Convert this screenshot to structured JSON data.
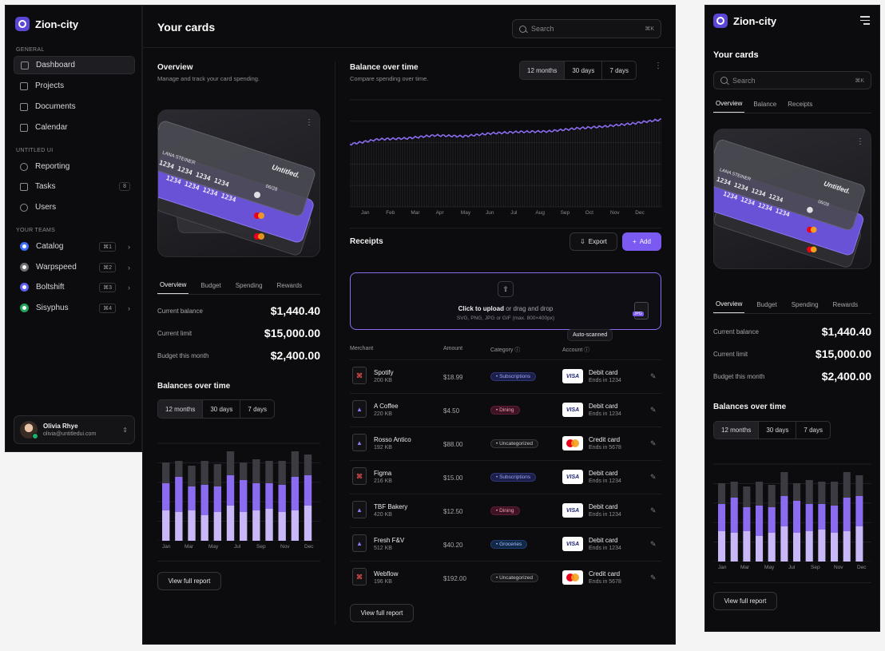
{
  "app": {
    "name": "Zion-city"
  },
  "sidebar": {
    "group_general": "GENERAL",
    "group_untitled": "UNTITLED UI",
    "group_teams": "YOUR TEAMS",
    "items": [
      {
        "label": "Dashboard"
      },
      {
        "label": "Projects"
      },
      {
        "label": "Documents"
      },
      {
        "label": "Calendar"
      },
      {
        "label": "Reporting"
      },
      {
        "label": "Tasks",
        "count": "8"
      },
      {
        "label": "Users"
      }
    ],
    "teams": [
      {
        "label": "Catalog",
        "shortcut": "⌘1",
        "color": "#3b6ff5"
      },
      {
        "label": "Warpspeed",
        "shortcut": "⌘2",
        "color": "#6d6d75"
      },
      {
        "label": "Boltshift",
        "shortcut": "⌘3",
        "color": "#5c5ff2"
      },
      {
        "label": "Sisyphus",
        "shortcut": "⌘4",
        "color": "#22a35a"
      }
    ],
    "user": {
      "name": "Olivia Rhye",
      "email": "olivia@untitledui.com"
    }
  },
  "header": {
    "title": "Your cards",
    "search_placeholder": "Search",
    "search_shortcut": "⌘K"
  },
  "overview": {
    "title": "Overview",
    "subtitle": "Manage and track your card spending.",
    "card_brand": "Untitled.",
    "card_holder": "LANA STEINER",
    "card_number": "1234  1234  1234  1234",
    "card_expiry": "06/28",
    "tabs": [
      "Overview",
      "Budget",
      "Spending",
      "Rewards"
    ],
    "stats": [
      {
        "label": "Current balance",
        "value": "$1,440.40"
      },
      {
        "label": "Current limit",
        "value": "$15,000.00"
      },
      {
        "label": "Budget this month",
        "value": "$2,400.00"
      }
    ]
  },
  "balances": {
    "title": "Balances over time",
    "ranges": [
      "12 months",
      "30 days",
      "7 days"
    ],
    "months": [
      "Jan",
      "Mar",
      "May",
      "Jul",
      "Sep",
      "Nov",
      "Dec"
    ],
    "report_button": "View full report"
  },
  "balance_over_time": {
    "title": "Balance over time",
    "subtitle": "Compare spending over time.",
    "ranges": [
      "12 months",
      "30 days",
      "7 days"
    ],
    "months": [
      "Jan",
      "Feb",
      "Mar",
      "Apr",
      "May",
      "Jun",
      "Jul",
      "Aug",
      "Sep",
      "Oct",
      "Nov",
      "Dec"
    ]
  },
  "receipts": {
    "title": "Receipts",
    "export_label": "Export",
    "add_label": "Add",
    "upload_cta": "Click to upload",
    "upload_rest": " or drag and drop",
    "upload_hint": "SVG, PNG, JPG or GIF (max. 800×400px)",
    "upload_file_tag": "JPG",
    "tooltip": "Auto-scanned",
    "columns": [
      "Merchant",
      "Amount",
      "Category",
      "Account"
    ],
    "rows": [
      {
        "merchant": "Spotify",
        "size": "200 KB",
        "amount": "$18.99",
        "category": "Subscriptions",
        "cat_style": "sub",
        "file": "pdf",
        "account": "Debit card",
        "ends": "Ends in 1234",
        "network": "visa"
      },
      {
        "merchant": "A Coffee",
        "size": "220 KB",
        "amount": "$4.50",
        "category": "Dining",
        "cat_style": "din",
        "file": "img",
        "account": "Debit card",
        "ends": "Ends in 1234",
        "network": "visa"
      },
      {
        "merchant": "Rosso Antico",
        "size": "192 KB",
        "amount": "$88.00",
        "category": "Uncategorized",
        "cat_style": "unc",
        "file": "img",
        "account": "Credit card",
        "ends": "Ends in 5678",
        "network": "mc"
      },
      {
        "merchant": "Figma",
        "size": "216 KB",
        "amount": "$15.00",
        "category": "Subscriptions",
        "cat_style": "sub",
        "file": "pdf",
        "account": "Debit card",
        "ends": "Ends in 1234",
        "network": "visa"
      },
      {
        "merchant": "TBF Bakery",
        "size": "420 KB",
        "amount": "$12.50",
        "category": "Dining",
        "cat_style": "din",
        "file": "img",
        "account": "Debit card",
        "ends": "Ends in 1234",
        "network": "visa"
      },
      {
        "merchant": "Fresh F&V",
        "size": "512 KB",
        "amount": "$40.20",
        "category": "Groceries",
        "cat_style": "gro",
        "file": "img",
        "account": "Debit card",
        "ends": "Ends in 1234",
        "network": "visa"
      },
      {
        "merchant": "Webflow",
        "size": "196 KB",
        "amount": "$192.00",
        "category": "Uncategorized",
        "cat_style": "unc",
        "file": "pdf",
        "account": "Credit card",
        "ends": "Ends in 5678",
        "network": "mc"
      }
    ],
    "report_button": "View full report"
  },
  "mobile": {
    "tabs": [
      "Overview",
      "Balance",
      "Receipts"
    ],
    "months": [
      "Jan",
      "Mar",
      "May",
      "Jul",
      "Sep",
      "Nov",
      "Dec"
    ]
  },
  "chart_data": [
    {
      "type": "bar",
      "stacked": true,
      "series": [
        {
          "values": [
            38,
            36,
            38,
            32,
            36,
            44,
            36,
            38,
            40,
            36,
            38,
            44
          ]
        },
        {
          "values": [
            34,
            44,
            30,
            38,
            32,
            38,
            40,
            34,
            32,
            34,
            42,
            38
          ]
        },
        {
          "values": [
            26,
            20,
            26,
            30,
            28,
            30,
            22,
            30,
            28,
            30,
            32,
            26
          ]
        }
      ],
      "colors": [
        "#c9b8f7",
        "#8b6cf0",
        "#3b3b41"
      ]
    },
    {
      "type": "line",
      "months": [
        "Jan",
        "Feb",
        "Mar",
        "Apr",
        "May",
        "Jun",
        "Jul",
        "Aug",
        "Sep",
        "Oct",
        "Nov",
        "Dec"
      ],
      "values": [
        0.2,
        0.3,
        0.32,
        0.38,
        0.36,
        0.42,
        0.45,
        0.46,
        0.52,
        0.56,
        0.62,
        0.7
      ]
    }
  ]
}
